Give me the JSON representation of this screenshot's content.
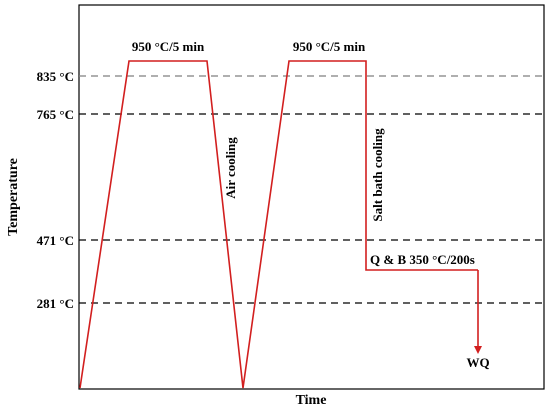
{
  "axes": {
    "x_label": "Time",
    "y_label": "Temperature"
  },
  "temperature_levels": [
    {
      "label": "835 °C",
      "value": 835,
      "line_color": "#7f7f7f"
    },
    {
      "label": "765 °C",
      "value": 765,
      "line_color": "#000000"
    },
    {
      "label": "471 °C",
      "value": 471,
      "line_color": "#000000"
    },
    {
      "label": "281 °C",
      "value": 281,
      "line_color": "#000000"
    }
  ],
  "annotations": {
    "first_hold": "950 °C/5 min",
    "second_hold": "950 °C/5 min",
    "air_cooling": "Air cooling",
    "salt_bath_cooling": "Salt bath cooling",
    "qb_hold": "Q & B 350 °C/200s",
    "end": "WQ"
  },
  "process": {
    "hold_temperature": 950,
    "qb_temperature": 350,
    "curve_color": "#d21f1f"
  },
  "colors": {
    "curve": "#d21f1f",
    "frame": "#000000",
    "dashed_major": "#000000",
    "dashed_minor": "#7f7f7f"
  }
}
